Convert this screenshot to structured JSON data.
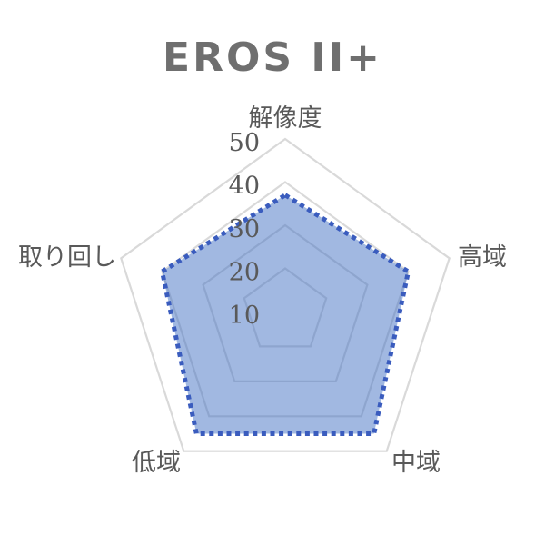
{
  "title": "EROS II+",
  "colors": {
    "title_text": "#6f6f6f",
    "label_text": "#595959",
    "gridline": "#d9d9d9",
    "series_fill": "#4472c4",
    "series_border": "#3a5cbe",
    "background": "#ffffff"
  },
  "chart_data": {
    "type": "radar",
    "title": "EROS II+",
    "categories": [
      "解像度",
      "高域",
      "中域",
      "低域",
      "取り回し"
    ],
    "category_keys": [
      "resolution",
      "high-range",
      "mid-range",
      "low-range",
      "handling"
    ],
    "series": [
      {
        "name": "EROS II+",
        "values": [
          37,
          40,
          45,
          45,
          40
        ]
      }
    ],
    "axis": {
      "min": 10,
      "max": 50,
      "major_unit": 10,
      "tick_labels": [
        "10",
        "20",
        "30",
        "40",
        "50"
      ]
    },
    "grid": true,
    "legend": false,
    "fill_style": "translucent",
    "border_style": "square-dotted"
  }
}
